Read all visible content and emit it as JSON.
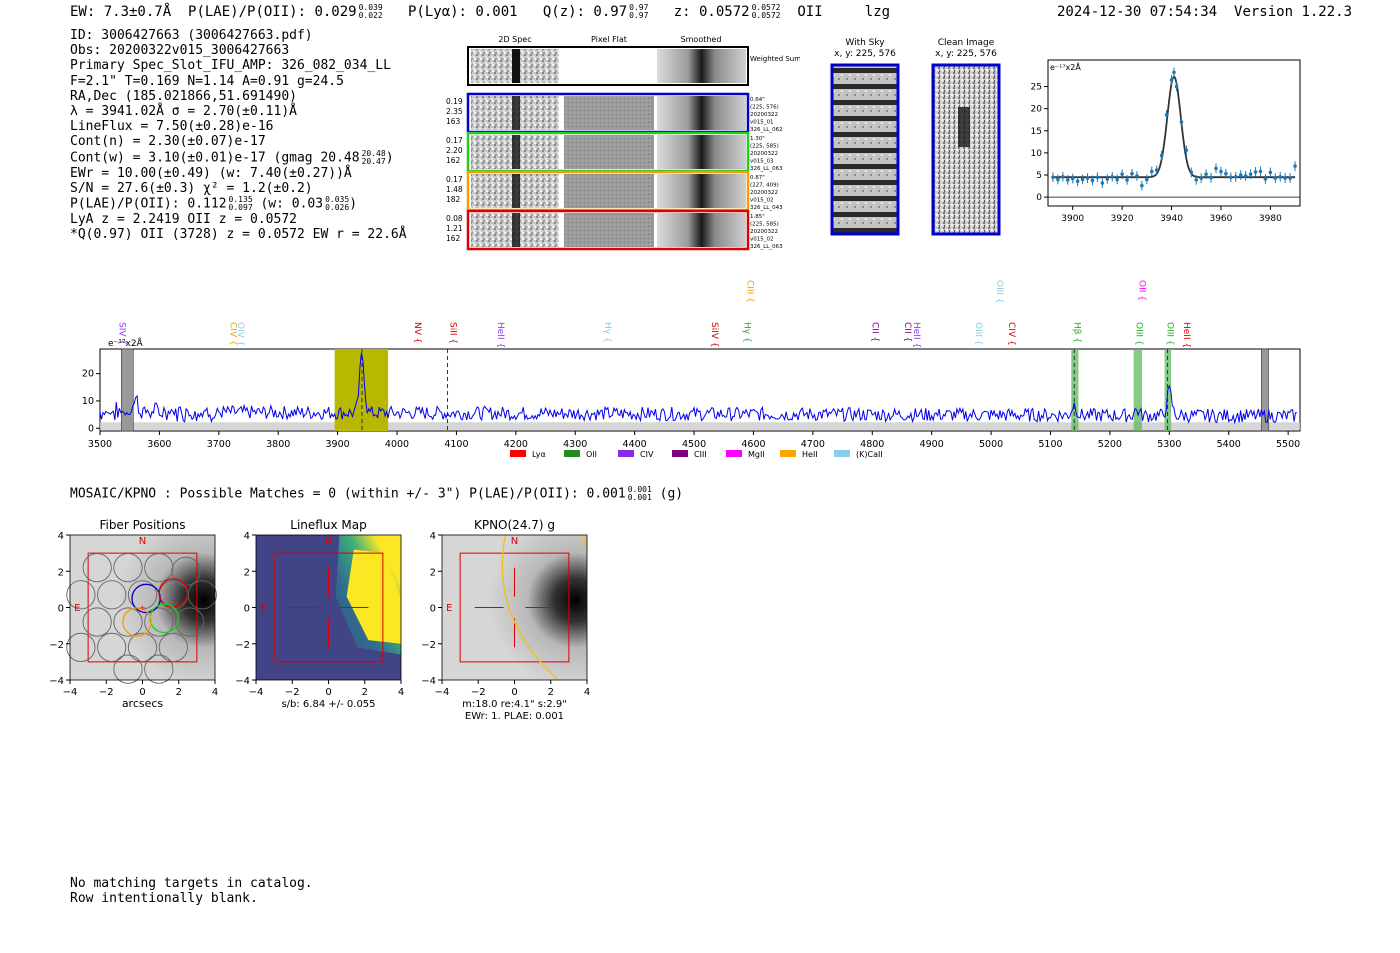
{
  "header": {
    "ew": "EW: 7.3±0.7Å",
    "plae_label": "P(LAE)/P(OII): 0.029",
    "plae_hi": "0.039",
    "plae_lo": "0.022",
    "plya": "P(Lyα): 0.001",
    "qz_label": "Q(z): 0.97",
    "qz_hi": "0.97",
    "qz_lo": "0.97",
    "z_label": "z: 0.0572",
    "z_hi": "0.0572",
    "z_lo": "0.0572",
    "z_line": "OII",
    "flag": "lzg",
    "timestamp": "2024-12-30 07:54:34",
    "version": "Version 1.22.3"
  },
  "info": {
    "id": "ID: 3006427663 (3006427663.pdf)",
    "obs": "Obs: 20200322v015_3006427663",
    "primary": "Primary Spec_Slot_IFU_AMP: 326_082_034_LL",
    "params": "F=2.1\"  T=0.169  N=1.14  A=0.91  g=24.5",
    "radec": "RA,Dec (185.021866,51.691490)",
    "lambda": "λ = 3941.02Å  σ = 2.70(±0.11)Å",
    "lineflux": "LineFlux = 7.50(±0.28)e-16",
    "contn": "Cont(n) = 2.30(±0.07)e-17",
    "contw": "Cont(w) = 3.10(±0.01)e-17 (gmag 20.48",
    "contw_hi": "20.48",
    "contw_lo": "20.47",
    "contw_end": ")",
    "ewr": "EWr = 10.00(±0.49) (w: 7.40(±0.27))Å",
    "sn": "S/N = 27.6(±0.3)  χ² = 1.2(±0.2)",
    "plae": "P(LAE)/P(OII): 0.112",
    "plae_hi": "0.135",
    "plae_lo": "0.097",
    "plae_w": "(w: 0.03",
    "plae_w_hi": "0.035",
    "plae_w_lo": "0.026",
    "plae_end": ")",
    "lya": "LyA z = 2.2419  OII z = 0.0572",
    "q": "*Q(0.97) OII (3728) z = 0.0572  EW r = 22.6Å"
  },
  "cutouts": {
    "col_labels": [
      "2D Spec",
      "Pixel Flat",
      "Smoothed"
    ],
    "weighted": "Weighted Sum",
    "rows": [
      {
        "left": [
          "0.19",
          "2.35",
          "163"
        ],
        "right": [
          "0.64\"",
          "(225, 576)",
          "20200322",
          "v015_01",
          "326_LL_062"
        ],
        "color": "#0000cc"
      },
      {
        "left": [
          "0.17",
          "2.20",
          "162"
        ],
        "right": [
          "1.30\"",
          "(225, 585)",
          "20200322",
          "v015_03",
          "326_LL_063"
        ],
        "color": "#22cc22"
      },
      {
        "left": [
          "0.17",
          "1.48",
          "182"
        ],
        "right": [
          "0.87\"",
          "(227, 409)",
          "20200322",
          "v015_02",
          "326_LL_043"
        ],
        "color": "#f5a000"
      },
      {
        "left": [
          "0.08",
          "1.21",
          "162"
        ],
        "right": [
          "1.85\"",
          "(225, 585)",
          "20200322",
          "v015_02",
          "326_LL_063"
        ],
        "color": "#dd0000"
      }
    ]
  },
  "sky": {
    "with_sky": "With Sky",
    "with_sky_xy": "x, y: 225, 576",
    "clean": "Clean Image",
    "clean_xy": "x, y: 225, 576"
  },
  "chart_data": [
    {
      "type": "scatter",
      "title": "",
      "units_label": "e⁻¹⁷x2Å",
      "xlabel": "",
      "ylabel": "",
      "xlim": [
        3890,
        3992
      ],
      "ylim": [
        -2,
        31
      ],
      "xticks": [
        3900,
        3920,
        3940,
        3960,
        3980
      ],
      "yticks": [
        0,
        5,
        10,
        15,
        20,
        25
      ],
      "points": [
        [
          3892,
          4.5
        ],
        [
          3894,
          4.0
        ],
        [
          3896,
          4.6
        ],
        [
          3898,
          3.9
        ],
        [
          3900,
          4.2
        ],
        [
          3902,
          3.6
        ],
        [
          3904,
          4.0
        ],
        [
          3906,
          4.3
        ],
        [
          3908,
          3.8
        ],
        [
          3910,
          4.5
        ],
        [
          3912,
          3.2
        ],
        [
          3914,
          4.1
        ],
        [
          3916,
          4.6
        ],
        [
          3918,
          4.0
        ],
        [
          3920,
          5.2
        ],
        [
          3922,
          3.9
        ],
        [
          3924,
          5.3
        ],
        [
          3926,
          4.8
        ],
        [
          3928,
          2.6
        ],
        [
          3930,
          4.0
        ],
        [
          3932,
          5.8
        ],
        [
          3934,
          6.1
        ],
        [
          3936,
          9.4
        ],
        [
          3938,
          18.6
        ],
        [
          3940,
          26.5
        ],
        [
          3941,
          28.2
        ],
        [
          3942,
          25.0
        ],
        [
          3944,
          17.0
        ],
        [
          3946,
          10.6
        ],
        [
          3948,
          5.6
        ],
        [
          3950,
          3.9
        ],
        [
          3952,
          4.3
        ],
        [
          3954,
          5.2
        ],
        [
          3956,
          4.4
        ],
        [
          3958,
          6.5
        ],
        [
          3960,
          5.8
        ],
        [
          3962,
          5.3
        ],
        [
          3964,
          4.5
        ],
        [
          3966,
          4.6
        ],
        [
          3968,
          5.0
        ],
        [
          3970,
          4.8
        ],
        [
          3972,
          5.2
        ],
        [
          3974,
          5.7
        ],
        [
          3976,
          5.8
        ],
        [
          3978,
          4.1
        ],
        [
          3980,
          5.6
        ],
        [
          3982,
          4.3
        ],
        [
          3984,
          4.6
        ],
        [
          3986,
          4.3
        ],
        [
          3988,
          4.3
        ],
        [
          3990,
          7.0
        ]
      ],
      "fit": {
        "center": 3941.02,
        "sigma": 2.7,
        "amplitude": 22.8,
        "continuum": 4.5
      }
    },
    {
      "type": "line",
      "units_label": "e⁻¹⁷x2Å",
      "xlim": [
        3500,
        5520
      ],
      "ylim": [
        -1,
        29
      ],
      "xticks": [
        3500,
        3600,
        3700,
        3800,
        3900,
        4000,
        4100,
        4200,
        4300,
        4400,
        4500,
        4600,
        4700,
        4800,
        4900,
        5000,
        5100,
        5200,
        5300,
        5400,
        5500
      ],
      "yticks": [
        0,
        10,
        20
      ],
      "series": [
        {
          "name": "spectrum",
          "baseline": 6.0
        }
      ],
      "peaks": [
        {
          "x": 3560,
          "y": 11
        },
        {
          "x": 3941,
          "y": 27
        },
        {
          "x": 5140,
          "y": 10
        },
        {
          "x": 5245,
          "y": 8
        },
        {
          "x": 5300,
          "y": 15
        }
      ],
      "highlight": {
        "x0": 3895,
        "x1": 3985
      },
      "masked": [
        {
          "x0": 3536,
          "x1": 3556
        },
        {
          "x0": 5455,
          "x1": 5467
        }
      ],
      "green_bands": [
        {
          "x0": 5135,
          "x1": 5147
        },
        {
          "x0": 5240,
          "x1": 5254
        },
        {
          "x0": 5292,
          "x1": 5303
        }
      ],
      "dashed": [
        3941,
        4085,
        5140,
        5297
      ],
      "lines": [
        {
          "label": "SIV",
          "x": 3533,
          "color": "#9933ff",
          "tier": "low"
        },
        {
          "label": "CIV",
          "x": 3720,
          "color": "#f5a000",
          "tier": "low"
        },
        {
          "label": "OIV",
          "x": 3732,
          "color": "#88ccee",
          "tier": "low"
        },
        {
          "label": "NV",
          "x": 4030,
          "color": "#dd0000",
          "tier": "low"
        },
        {
          "label": "SiII",
          "x": 4090,
          "color": "#dd0000",
          "tier": "low"
        },
        {
          "label": "HeII",
          "x": 4170,
          "color": "#9933ff",
          "tier": "low"
        },
        {
          "label": "Hγ",
          "x": 4350,
          "color": "#88ccee",
          "tier": "low"
        },
        {
          "label": "SiIV",
          "x": 4530,
          "color": "#dd0000",
          "tier": "low"
        },
        {
          "label": "Hγ",
          "x": 4585,
          "color": "#22aa22",
          "tier": "low"
        },
        {
          "label": "CIII",
          "x": 4590,
          "color": "#f5a000",
          "tier": "high"
        },
        {
          "label": "CII",
          "x": 4800,
          "color": "#880088",
          "tier": "low"
        },
        {
          "label": "CII",
          "x": 4855,
          "color": "#880088",
          "tier": "low"
        },
        {
          "label": "HeII",
          "x": 4870,
          "color": "#9933ff",
          "tier": "low"
        },
        {
          "label": "OIII",
          "x": 4975,
          "color": "#88ccee",
          "tier": "low"
        },
        {
          "label": "OIII",
          "x": 5010,
          "color": "#88ccee",
          "tier": "high"
        },
        {
          "label": "CIV",
          "x": 5030,
          "color": "#dd0000",
          "tier": "low"
        },
        {
          "label": "Hβ",
          "x": 5140,
          "color": "#22aa22",
          "tier": "low"
        },
        {
          "label": "OIII",
          "x": 5245,
          "color": "#22aa22",
          "tier": "low"
        },
        {
          "label": "OII",
          "x": 5250,
          "color": "#ff00ff",
          "tier": "high"
        },
        {
          "label": "OIII",
          "x": 5297,
          "color": "#22aa22",
          "tier": "low"
        },
        {
          "label": "HeII",
          "x": 5325,
          "color": "#dd0000",
          "tier": "low"
        }
      ],
      "legend": [
        {
          "name": "Lyα",
          "color": "#ff0000"
        },
        {
          "name": "OII",
          "color": "#228B22"
        },
        {
          "name": "CIV",
          "color": "#8a2be2"
        },
        {
          "name": "CIII",
          "color": "#800080"
        },
        {
          "name": "MgII",
          "color": "#ff00ff"
        },
        {
          "name": "HeII",
          "color": "#ffa500"
        },
        {
          "name": "(K)CaII",
          "color": "#87ceeb"
        }
      ]
    },
    {
      "type": "heatmap",
      "title": "Fiber Positions",
      "xlabel": "arcsecs",
      "xlim": [
        -4,
        4
      ],
      "ylim": [
        -4,
        4
      ],
      "xticks": [
        -4,
        -2,
        0,
        2,
        4
      ],
      "yticks": [
        4,
        2,
        0,
        -2,
        -4
      ],
      "compass": {
        "north": "N",
        "east": "E"
      }
    },
    {
      "type": "heatmap",
      "title": "Lineflux Map",
      "xlabel": "s/b: 6.84 +/- 0.055",
      "xlim": [
        -4,
        4
      ],
      "ylim": [
        -4,
        4
      ],
      "xticks": [
        -4,
        -2,
        0,
        2,
        4
      ],
      "yticks": [
        4,
        2,
        0,
        -2,
        -4
      ],
      "compass": {
        "north": "N",
        "east": "E"
      }
    },
    {
      "type": "heatmap",
      "title": "KPNO(24.7) g",
      "xlabel": "m:18.0  re:4.1\"  s:2.9\"",
      "xlabel2": "EWr: 1. PLAE: 0.001",
      "xlim": [
        -4,
        4
      ],
      "ylim": [
        -4,
        4
      ],
      "xticks": [
        -4,
        -2,
        0,
        2,
        4
      ],
      "yticks": [
        4,
        2,
        0,
        -2,
        -4
      ],
      "compass": {
        "north": "N",
        "east": "E"
      }
    }
  ],
  "mosaic": {
    "text": "MOSAIC/KPNO : Possible Matches = 0 (within +/- 3\")  P(LAE)/P(OII): 0.001",
    "hi": "0.001",
    "lo": "0.001",
    "band": "(g)"
  },
  "footer": {
    "line1": "No matching targets in catalog.",
    "line2": "Row intentionally blank."
  }
}
